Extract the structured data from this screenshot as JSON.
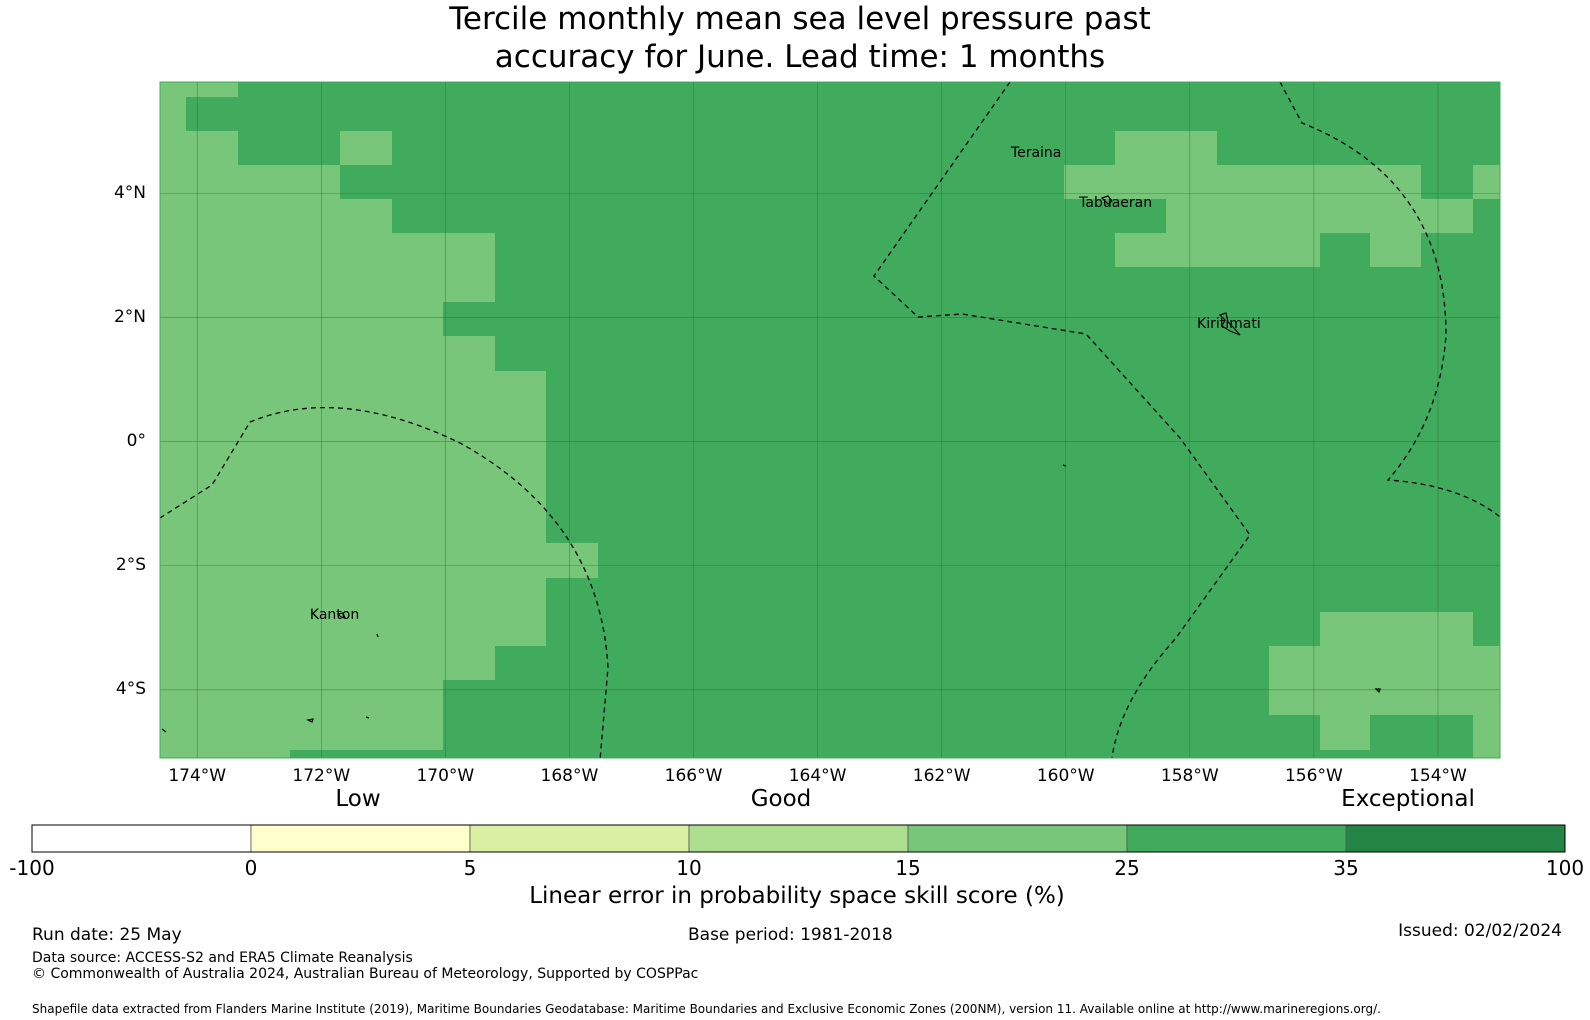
{
  "title_line1": "Tercile monthly mean sea level pressure past",
  "title_line2": "accuracy for June. Lead time: 1 months",
  "colors": {
    "land": "#ffffff",
    "grid_line": "#2f6b3a",
    "border": "#000000",
    "bins": [
      "#ffffff",
      "#ffffcc",
      "#d9f0a3",
      "#addd8e",
      "#78c679",
      "#41ab5d",
      "#238443"
    ]
  },
  "map": {
    "lon_range": [
      -174.6,
      -153.0
    ],
    "lat_range": [
      -5.1,
      5.8
    ],
    "dominant_category": "25-35 %",
    "patch_category": "15-25 %",
    "lat_ticks": [
      {
        "value": 4,
        "label": "4°N"
      },
      {
        "value": 2,
        "label": "2°N"
      },
      {
        "value": 0,
        "label": "0°"
      },
      {
        "value": -2,
        "label": "2°S"
      },
      {
        "value": -4,
        "label": "4°S"
      }
    ],
    "lon_ticks": [
      {
        "value": -174,
        "label": "174°W"
      },
      {
        "value": -172,
        "label": "172°W"
      },
      {
        "value": -170,
        "label": "170°W"
      },
      {
        "value": -168,
        "label": "168°W"
      },
      {
        "value": -166,
        "label": "166°W"
      },
      {
        "value": -164,
        "label": "164°W"
      },
      {
        "value": -162,
        "label": "162°W"
      },
      {
        "value": -160,
        "label": "160°W"
      },
      {
        "value": -158,
        "label": "158°W"
      },
      {
        "value": -156,
        "label": "156°W"
      },
      {
        "value": -154,
        "label": "154°W"
      }
    ],
    "places": [
      {
        "name": "Teraina",
        "lon": -160.4,
        "lat": 4.65
      },
      {
        "name": "Tabuaeran",
        "lon": -159.3,
        "lat": 3.85
      },
      {
        "name": "Kiritimati",
        "lon": -157.4,
        "lat": 1.9
      },
      {
        "name": "Kanton",
        "lon": -171.7,
        "lat": -2.8
      }
    ]
  },
  "colorbar": {
    "category_labels": [
      "Low",
      "Good",
      "Exceptional"
    ],
    "ticks": [
      "-100",
      "0",
      "5",
      "10",
      "15",
      "25",
      "35",
      "100"
    ],
    "title": "Linear error in probability space skill score (%)"
  },
  "footer": {
    "run_date": "Run date: 25 May",
    "base_period": "Base period: 1981-2018",
    "issued": "Issued: 02/02/2024",
    "data_source": "Data source: ACCESS-S2 and ERA5 Climate Reanalysis",
    "copyright": "© Commonwealth of Australia 2024, Australian Bureau of Meteorology, Supported by COSPPac",
    "shapefile": "Shapefile data extracted from Flanders Marine Institute (2019), Maritime Boundaries Geodatabase: Maritime Boundaries and Exclusive Economic Zones (200NM), version 11. Available online at http://www.marineregions.org/."
  }
}
